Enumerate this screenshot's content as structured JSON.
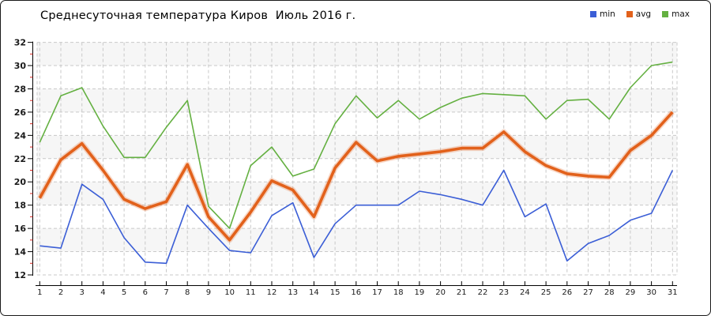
{
  "chart_data": {
    "type": "line",
    "title": "Среднесуточная температура Киров  Июль 2016 г.",
    "xlabel": "",
    "ylabel": "",
    "x": [
      1,
      2,
      3,
      4,
      5,
      6,
      7,
      8,
      9,
      10,
      11,
      12,
      13,
      14,
      15,
      16,
      17,
      18,
      19,
      20,
      21,
      22,
      23,
      24,
      25,
      26,
      27,
      28,
      29,
      30,
      31
    ],
    "series": [
      {
        "name": "min",
        "color": "#3b5ed6",
        "values": [
          14.5,
          14.3,
          19.8,
          18.5,
          15.2,
          13.1,
          13.0,
          18.0,
          16.0,
          14.1,
          13.9,
          17.1,
          18.2,
          13.5,
          16.4,
          18.0,
          18.0,
          18.0,
          19.2,
          18.9,
          18.5,
          18.0,
          21.0,
          17.0,
          18.1,
          13.2,
          14.7,
          15.4,
          16.7,
          17.3,
          21.0
        ]
      },
      {
        "name": "avg",
        "color": "#e2611b",
        "values": [
          18.6,
          21.9,
          23.3,
          21.0,
          18.5,
          17.7,
          18.3,
          21.5,
          17.0,
          15.0,
          17.4,
          20.1,
          19.3,
          17.0,
          21.2,
          23.4,
          21.8,
          22.2,
          22.4,
          22.6,
          22.9,
          22.9,
          24.3,
          22.6,
          21.4,
          20.7,
          20.5,
          20.4,
          22.7,
          24.0,
          26.0
        ]
      },
      {
        "name": "max",
        "color": "#64b041",
        "values": [
          23.4,
          27.4,
          28.1,
          24.8,
          22.1,
          22.1,
          24.7,
          27.0,
          17.9,
          16.0,
          21.4,
          23.0,
          20.5,
          21.1,
          25.0,
          27.4,
          25.5,
          27.0,
          25.4,
          26.4,
          27.2,
          27.6,
          27.5,
          27.4,
          25.4,
          27.0,
          27.1,
          25.4,
          28.1,
          30.0,
          30.3
        ]
      }
    ],
    "ylim": [
      12,
      32
    ],
    "yticks": [
      12,
      14,
      16,
      18,
      20,
      22,
      24,
      26,
      28,
      30,
      32
    ],
    "legend_position": "top-right",
    "grid": "dashed",
    "colors": {
      "grid_line": "#c9c9c9",
      "stripe_band": "#f6f6f6",
      "axis_line": "#000000",
      "minor_tick": "#d9241f",
      "tick_text": "#1a1a1a"
    }
  }
}
